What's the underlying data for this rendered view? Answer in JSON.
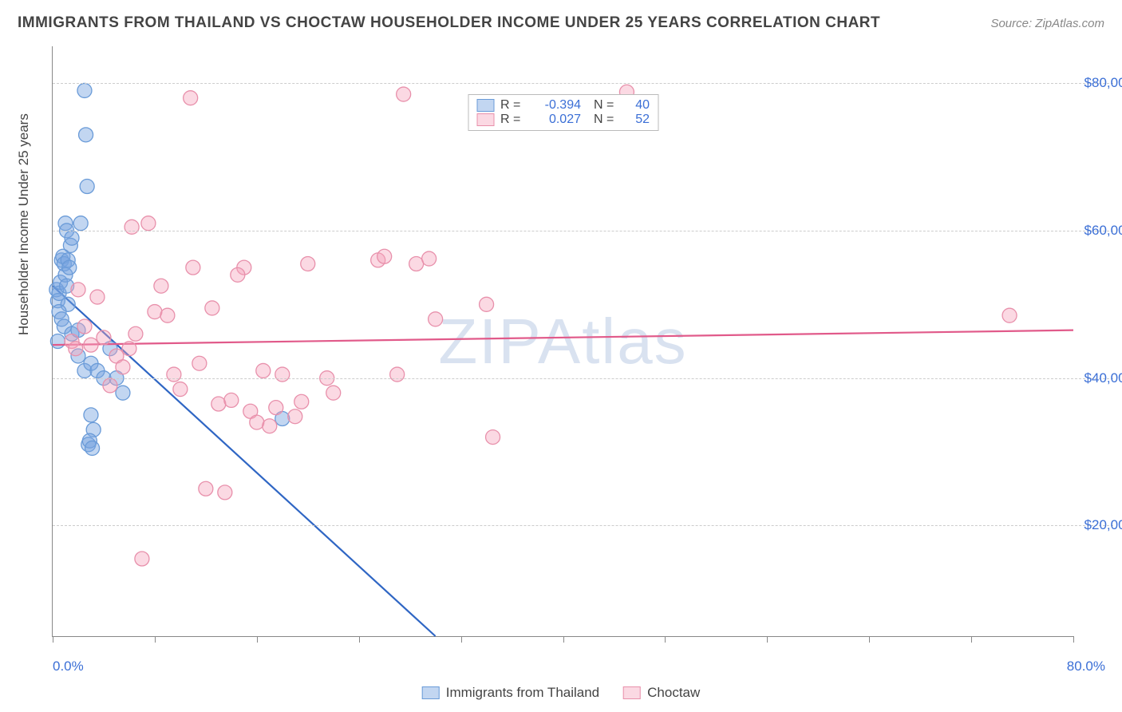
{
  "title": "IMMIGRANTS FROM THAILAND VS CHOCTAW HOUSEHOLDER INCOME UNDER 25 YEARS CORRELATION CHART",
  "source": "Source: ZipAtlas.com",
  "watermark": "ZIPAtlas",
  "ylabel": "Householder Income Under 25 years",
  "chart": {
    "type": "scatter",
    "xlim": [
      0,
      80
    ],
    "ylim": [
      5000,
      85000
    ],
    "x_unit": "%",
    "y_unit": "$",
    "yticks": [
      20000,
      40000,
      60000,
      80000
    ],
    "ytick_labels": [
      "$20,000",
      "$40,000",
      "$60,000",
      "$80,000"
    ],
    "xticks": [
      0,
      8,
      16,
      24,
      32,
      40,
      48,
      56,
      64,
      72,
      80
    ],
    "xlim_labels": [
      "0.0%",
      "80.0%"
    ],
    "background_color": "#ffffff",
    "grid_color": "#cccccc",
    "axis_color": "#888888",
    "textlabel_color": "#3b6fd6",
    "marker_radius": 9,
    "marker_stroke_width": 1.3,
    "trendline_width": 2.2,
    "series": [
      {
        "name": "Immigrants from Thailand",
        "color_fill": "rgba(120,165,225,0.45)",
        "color_stroke": "#6A9BD8",
        "trend_color": "#2F66C4",
        "R": "-0.394",
        "N": "40",
        "trend": {
          "x1": 0,
          "y1": 52500,
          "x2": 30,
          "y2": 5000,
          "extend_dash": true
        },
        "points": [
          [
            0.3,
            52000
          ],
          [
            0.4,
            50500
          ],
          [
            0.5,
            51500
          ],
          [
            0.6,
            53000
          ],
          [
            0.7,
            56000
          ],
          [
            0.8,
            56500
          ],
          [
            0.9,
            55500
          ],
          [
            1.0,
            54000
          ],
          [
            1.1,
            52500
          ],
          [
            1.2,
            50000
          ],
          [
            0.5,
            49000
          ],
          [
            0.7,
            48000
          ],
          [
            0.9,
            47000
          ],
          [
            1.2,
            56000
          ],
          [
            1.3,
            55000
          ],
          [
            1.0,
            61000
          ],
          [
            1.1,
            60000
          ],
          [
            1.4,
            58000
          ],
          [
            1.5,
            59000
          ],
          [
            2.2,
            61000
          ],
          [
            2.5,
            79000
          ],
          [
            2.6,
            73000
          ],
          [
            2.7,
            66000
          ],
          [
            3.0,
            35000
          ],
          [
            3.2,
            33000
          ],
          [
            2.0,
            43000
          ],
          [
            2.5,
            41000
          ],
          [
            3.0,
            42000
          ],
          [
            3.5,
            41000
          ],
          [
            4.0,
            40000
          ],
          [
            1.5,
            46000
          ],
          [
            2.0,
            46500
          ],
          [
            2.8,
            31000
          ],
          [
            2.9,
            31500
          ],
          [
            3.1,
            30500
          ],
          [
            4.5,
            44000
          ],
          [
            5.0,
            40000
          ],
          [
            5.5,
            38000
          ],
          [
            18.0,
            34500
          ],
          [
            0.4,
            45000
          ]
        ]
      },
      {
        "name": "Choctaw",
        "color_fill": "rgba(245,160,185,0.40)",
        "color_stroke": "#E890AB",
        "trend_color": "#E15A8A",
        "R": "0.027",
        "N": "52",
        "trend": {
          "x1": 0,
          "y1": 44500,
          "x2": 80,
          "y2": 46500,
          "extend_dash": false
        },
        "points": [
          [
            1.5,
            45000
          ],
          [
            1.8,
            44000
          ],
          [
            2.5,
            47000
          ],
          [
            3.0,
            44500
          ],
          [
            4.0,
            45500
          ],
          [
            5.0,
            43000
          ],
          [
            6.0,
            44000
          ],
          [
            6.2,
            60500
          ],
          [
            7.5,
            61000
          ],
          [
            8.0,
            49000
          ],
          [
            9.0,
            48500
          ],
          [
            9.5,
            40500
          ],
          [
            10.0,
            38500
          ],
          [
            10.8,
            78000
          ],
          [
            11.0,
            55000
          ],
          [
            11.5,
            42000
          ],
          [
            12.5,
            49500
          ],
          [
            13.0,
            36500
          ],
          [
            13.5,
            24500
          ],
          [
            14.0,
            37000
          ],
          [
            15.0,
            55000
          ],
          [
            15.5,
            35500
          ],
          [
            16.0,
            34000
          ],
          [
            16.5,
            41000
          ],
          [
            17.0,
            33500
          ],
          [
            17.5,
            36000
          ],
          [
            18.0,
            40500
          ],
          [
            19.0,
            34800
          ],
          [
            19.5,
            36800
          ],
          [
            20.0,
            55500
          ],
          [
            21.5,
            40000
          ],
          [
            25.5,
            56000
          ],
          [
            26.0,
            56500
          ],
          [
            27.0,
            40500
          ],
          [
            27.5,
            78500
          ],
          [
            28.5,
            55500
          ],
          [
            29.5,
            56200
          ],
          [
            34.0,
            50000
          ],
          [
            34.5,
            32000
          ],
          [
            45.0,
            78800
          ],
          [
            75.0,
            48500
          ],
          [
            2.0,
            52000
          ],
          [
            3.5,
            51000
          ],
          [
            4.5,
            39000
          ],
          [
            5.5,
            41500
          ],
          [
            6.5,
            46000
          ],
          [
            7.0,
            15500
          ],
          [
            8.5,
            52500
          ],
          [
            12.0,
            25000
          ],
          [
            14.5,
            54000
          ],
          [
            22.0,
            38000
          ],
          [
            30.0,
            48000
          ]
        ]
      }
    ]
  },
  "legend_bottom": [
    {
      "label": "Immigrants from Thailand",
      "fill": "rgba(120,165,225,0.45)",
      "stroke": "#6A9BD8"
    },
    {
      "label": "Choctaw",
      "fill": "rgba(245,160,185,0.40)",
      "stroke": "#E890AB"
    }
  ]
}
